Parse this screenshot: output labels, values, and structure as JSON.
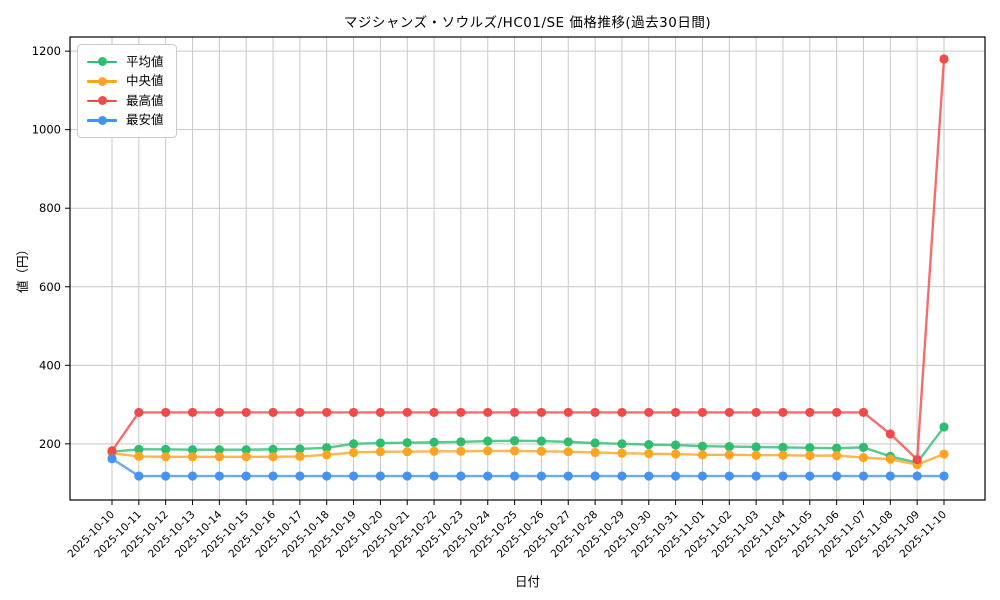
{
  "chart_data": {
    "type": "line",
    "title": "マジシャンズ・ソウルズ/HC01/SE 価格推移(過去30日間)",
    "xlabel": "日付",
    "ylabel": "値（円）",
    "ylim": [
      57,
      1236
    ],
    "yticks": [
      200,
      400,
      600,
      800,
      1000,
      1200
    ],
    "grid": true,
    "legend_position": "upper-left",
    "grid_color": "#c9c9c9",
    "axis_color": "#000000",
    "categories": [
      "2025-10-10",
      "2025-10-11",
      "2025-10-12",
      "2025-10-13",
      "2025-10-14",
      "2025-10-15",
      "2025-10-16",
      "2025-10-17",
      "2025-10-18",
      "2025-10-19",
      "2025-10-20",
      "2025-10-21",
      "2025-10-22",
      "2025-10-23",
      "2025-10-24",
      "2025-10-25",
      "2025-10-26",
      "2025-10-27",
      "2025-10-28",
      "2025-10-29",
      "2025-10-30",
      "2025-10-31",
      "2025-11-01",
      "2025-11-02",
      "2025-11-03",
      "2025-11-04",
      "2025-11-05",
      "2025-11-06",
      "2025-11-07",
      "2025-11-08",
      "2025-11-09",
      "2025-11-10"
    ],
    "series": [
      {
        "name": "平均値",
        "color": "#2EBD6E",
        "values": [
          180,
          186,
          186,
          185,
          185,
          185,
          186,
          187,
          190,
          200,
          202,
          203,
          204,
          205,
          207,
          208,
          207,
          205,
          202,
          200,
          198,
          197,
          194,
          193,
          192,
          191,
          190,
          189,
          191,
          168,
          152,
          243
        ]
      },
      {
        "name": "中央値",
        "color": "#FFA420",
        "values": [
          176,
          168,
          167,
          167,
          167,
          167,
          167,
          168,
          172,
          178,
          180,
          180,
          181,
          181,
          182,
          182,
          181,
          180,
          178,
          176,
          175,
          174,
          172,
          172,
          171,
          171,
          170,
          170,
          165,
          161,
          147,
          174
        ]
      },
      {
        "name": "最高値",
        "color": "#F24A4A",
        "values": [
          182,
          280,
          280,
          280,
          280,
          280,
          280,
          280,
          280,
          280,
          280,
          280,
          280,
          280,
          280,
          280,
          280,
          280,
          280,
          280,
          280,
          280,
          280,
          280,
          280,
          280,
          280,
          280,
          280,
          225,
          160,
          1180
        ]
      },
      {
        "name": "最安値",
        "color": "#4593F0",
        "values": [
          162,
          118,
          118,
          118,
          118,
          118,
          118,
          118,
          118,
          118,
          118,
          118,
          118,
          118,
          118,
          118,
          118,
          118,
          118,
          118,
          118,
          118,
          118,
          118,
          118,
          118,
          118,
          118,
          118,
          118,
          118,
          118
        ]
      }
    ]
  }
}
